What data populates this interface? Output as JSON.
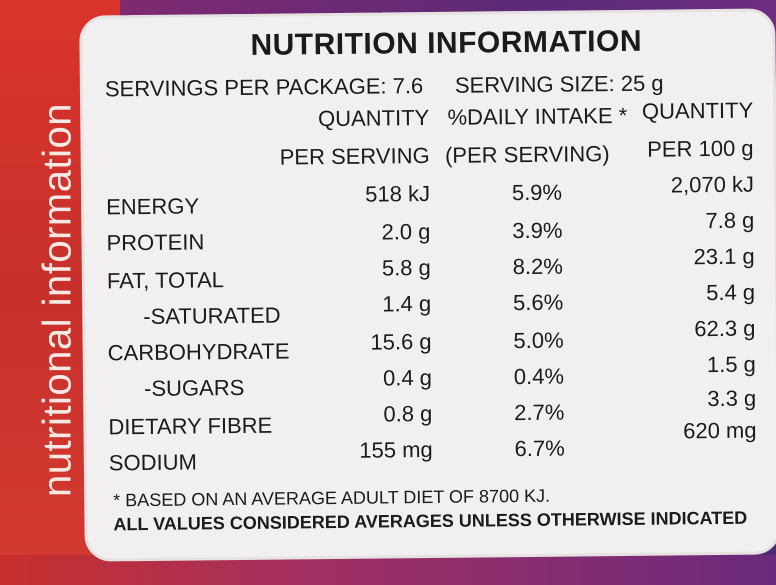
{
  "side_title": "nutritional information",
  "title": "NUTRITION INFORMATION",
  "servings_per_package": "SERVINGS PER PACKAGE: 7.6",
  "serving_size": "SERVING SIZE: 25 g",
  "headers": {
    "col1_line1": "QUANTITY",
    "col1_line2": "PER SERVING",
    "col2_line1": "%DAILY INTAKE *",
    "col2_line2": "(PER SERVING)",
    "col3_line1": "QUANTITY",
    "col3_line2": "PER 100 g"
  },
  "rows": [
    {
      "label": "ENERGY",
      "per_serving": "518 kJ",
      "daily_intake": "5.9%",
      "per_100g": "2,070 kJ"
    },
    {
      "label": "PROTEIN",
      "per_serving": "2.0 g",
      "daily_intake": "3.9%",
      "per_100g": "7.8 g"
    },
    {
      "label": "FAT, TOTAL",
      "per_serving": "5.8 g",
      "daily_intake": "8.2%",
      "per_100g": "23.1 g"
    },
    {
      "label": "-SATURATED",
      "per_serving": "1.4 g",
      "daily_intake": "5.6%",
      "per_100g": "5.4 g"
    },
    {
      "label": "CARBOHYDRATE",
      "per_serving": "15.6 g",
      "daily_intake": "5.0%",
      "per_100g": "62.3 g"
    },
    {
      "label": "-SUGARS",
      "per_serving": "0.4 g",
      "daily_intake": "0.4%",
      "per_100g": "1.5 g"
    },
    {
      "label": "DIETARY FIBRE",
      "per_serving": "0.8 g",
      "daily_intake": "2.7%",
      "per_100g": "3.3 g"
    },
    {
      "label": "SODIUM",
      "per_serving": "155 mg",
      "daily_intake": "6.7%",
      "per_100g": "620 mg"
    }
  ],
  "footnote": "* BASED ON AN AVERAGE ADULT DIET OF 8700 KJ.",
  "footnote_bold": "ALL VALUES CONSIDERED AVERAGES UNLESS OTHERWISE INDICATED"
}
